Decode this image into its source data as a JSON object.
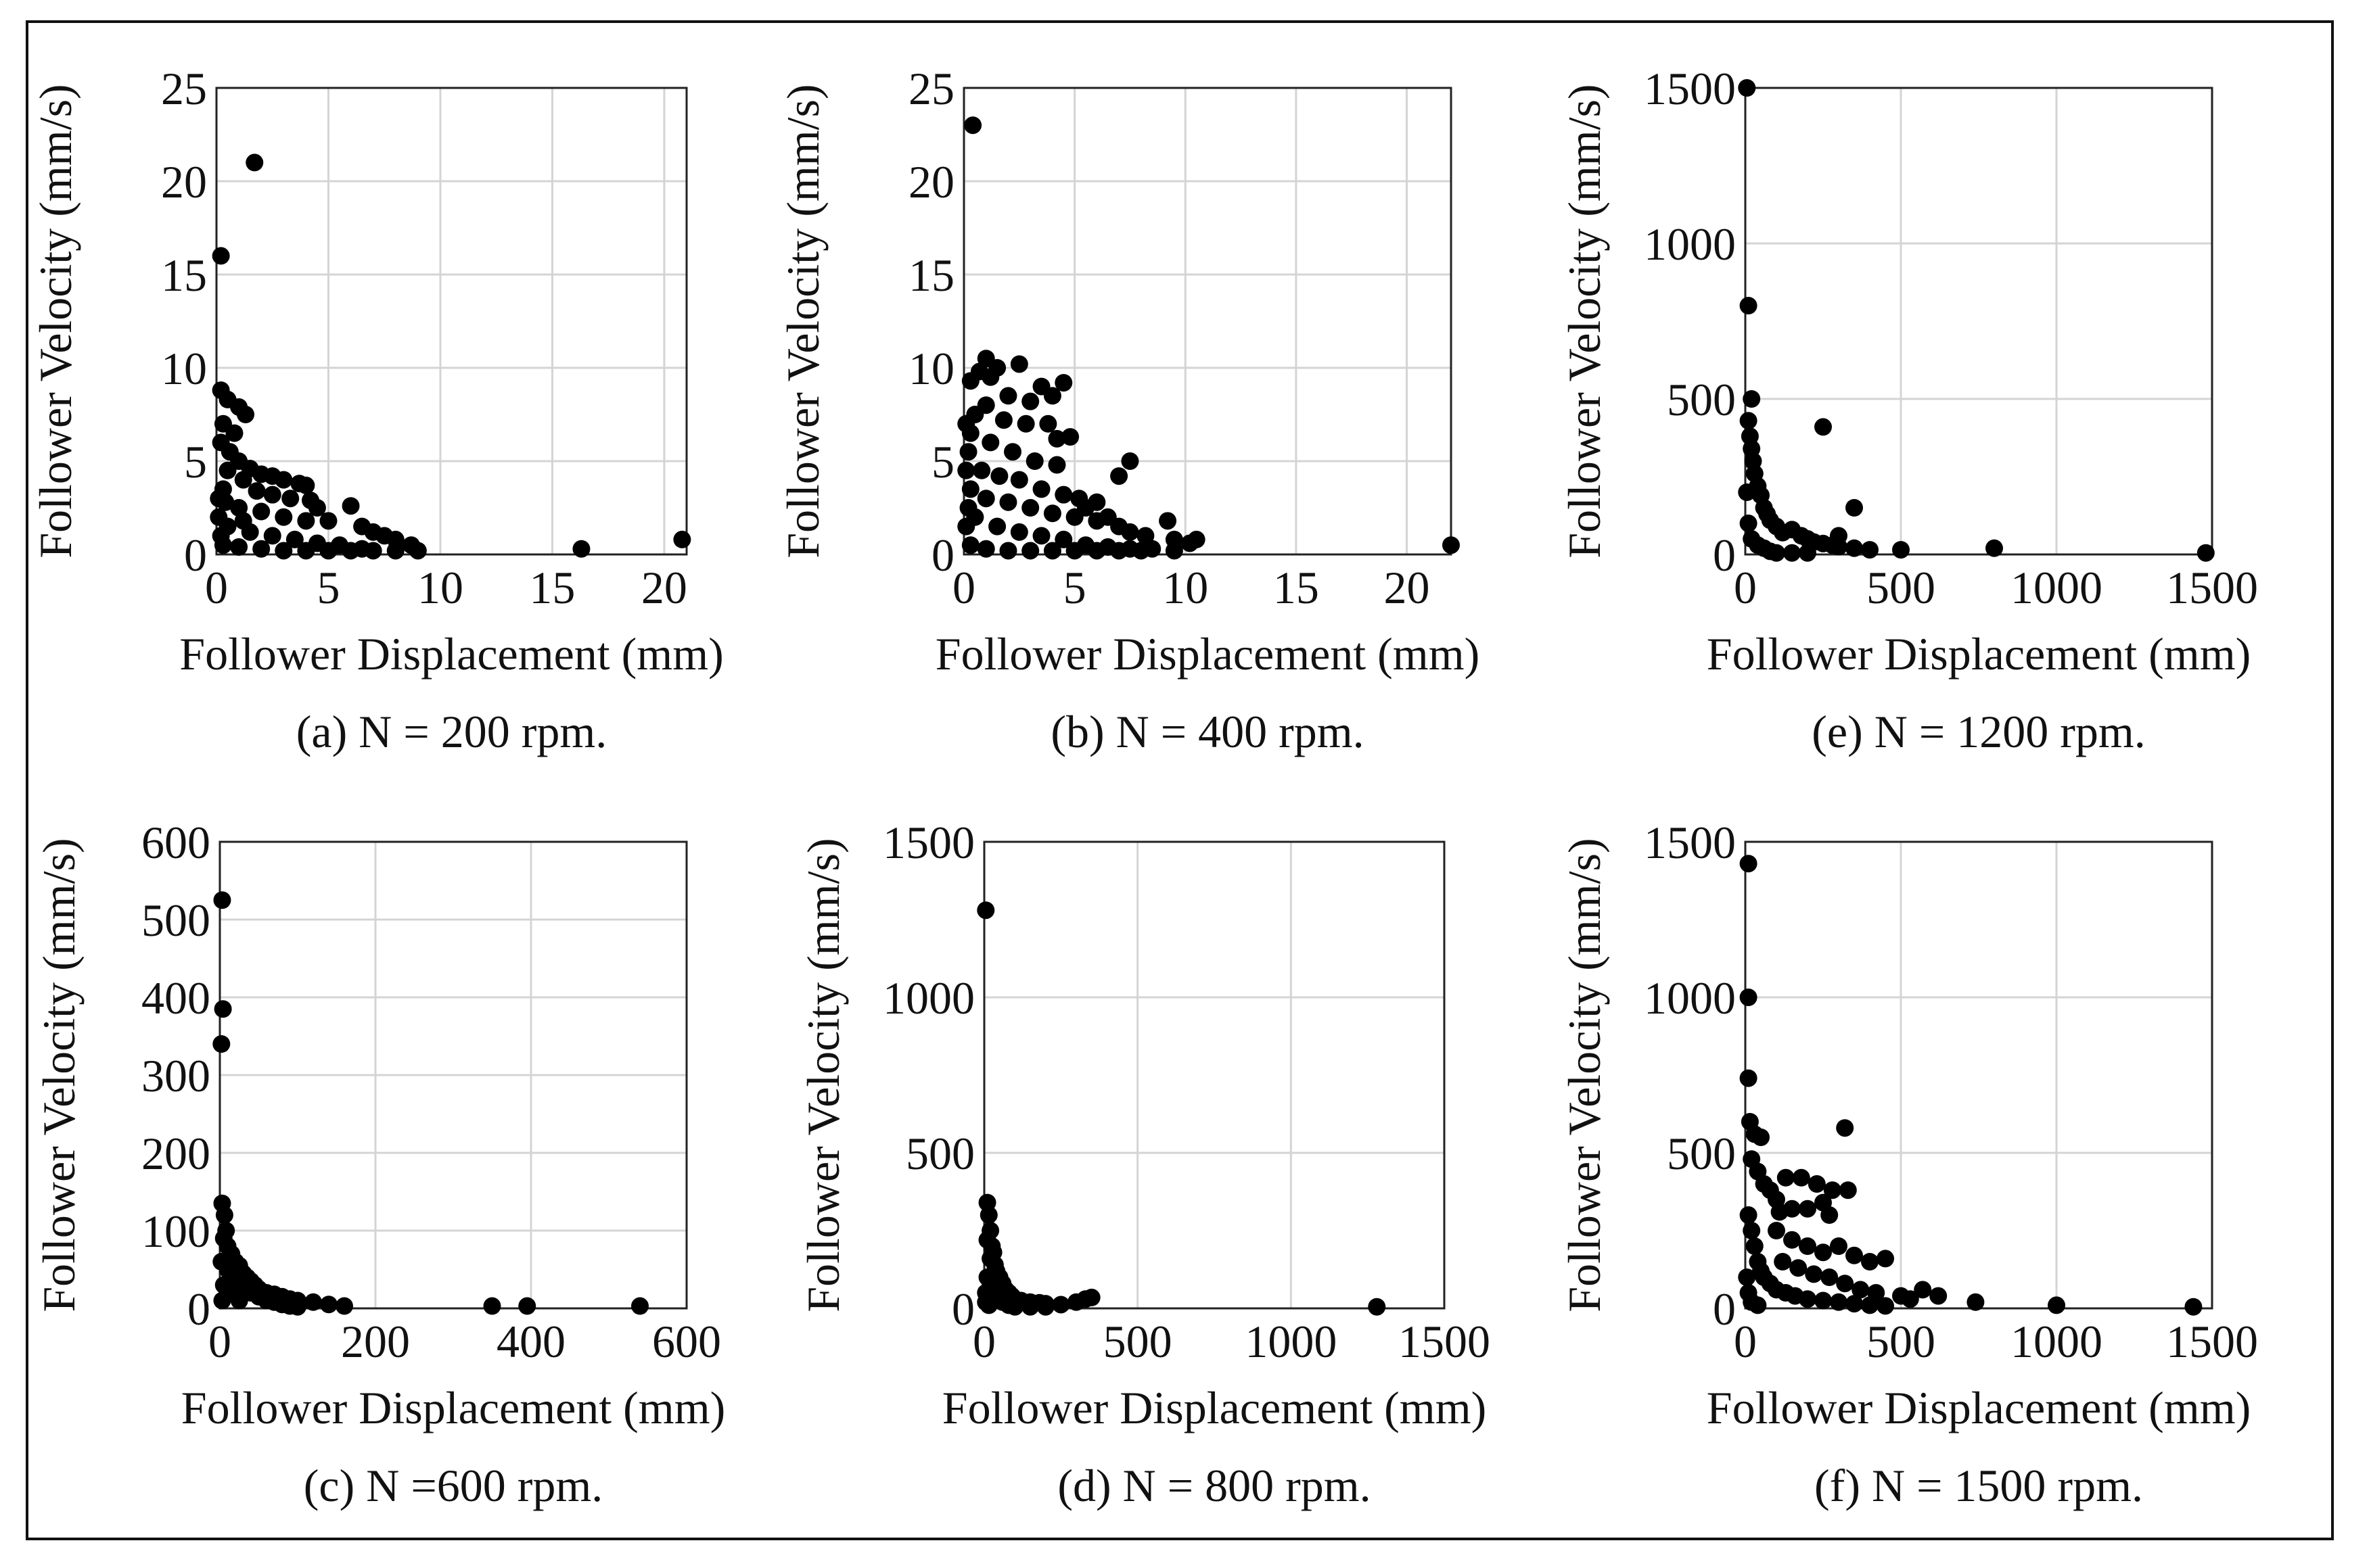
{
  "chart_data": [
    {
      "type": "scatter",
      "id": "a",
      "caption": "(a) N = 200 rpm.",
      "xlabel": "Follower Displacement (mm)",
      "ylabel": "Follower Velocity (mm/s)",
      "xlim": [
        0,
        21
      ],
      "ylim": [
        0,
        25
      ],
      "xticks": [
        0,
        5,
        10,
        15,
        20
      ],
      "yticks": [
        0,
        5,
        10,
        15,
        20,
        25
      ],
      "points": [
        [
          0.2,
          16
        ],
        [
          1.7,
          21
        ],
        [
          0.2,
          8.8
        ],
        [
          0.5,
          8.3
        ],
        [
          1.0,
          7.9
        ],
        [
          1.3,
          7.5
        ],
        [
          0.3,
          7
        ],
        [
          0.8,
          6.5
        ],
        [
          0.2,
          6
        ],
        [
          0.6,
          5.5
        ],
        [
          1.0,
          5
        ],
        [
          1.5,
          4.6
        ],
        [
          2.0,
          4.3
        ],
        [
          2.5,
          4.2
        ],
        [
          3,
          4
        ],
        [
          3.7,
          3.8
        ],
        [
          4.0,
          3.7
        ],
        [
          0.5,
          4.5
        ],
        [
          1.2,
          4
        ],
        [
          0.3,
          3.5
        ],
        [
          1.8,
          3.4
        ],
        [
          2.5,
          3.2
        ],
        [
          3.3,
          3
        ],
        [
          4.2,
          2.9
        ],
        [
          4.5,
          2.5
        ],
        [
          6,
          2.6
        ],
        [
          1,
          2.5
        ],
        [
          2,
          2.3
        ],
        [
          3,
          2
        ],
        [
          4,
          1.8
        ],
        [
          5,
          1.8
        ],
        [
          6.5,
          1.5
        ],
        [
          7,
          1.2
        ],
        [
          7.5,
          1
        ],
        [
          8,
          0.8
        ],
        [
          8.7,
          0.5
        ],
        [
          0.5,
          1.5
        ],
        [
          1.5,
          1.2
        ],
        [
          2.5,
          1
        ],
        [
          3.5,
          0.8
        ],
        [
          4.5,
          0.6
        ],
        [
          5.5,
          0.5
        ],
        [
          6.5,
          0.3
        ],
        [
          0.3,
          0.5
        ],
        [
          1,
          0.4
        ],
        [
          2,
          0.3
        ],
        [
          3,
          0.2
        ],
        [
          4,
          0.2
        ],
        [
          5,
          0.2
        ],
        [
          6,
          0.2
        ],
        [
          7,
          0.2
        ],
        [
          8,
          0.2
        ],
        [
          9,
          0.2
        ],
        [
          16.3,
          0.3
        ],
        [
          20.8,
          0.8
        ],
        [
          0.1,
          2
        ],
        [
          0.2,
          1
        ],
        [
          0.1,
          3
        ],
        [
          0.4,
          2.8
        ],
        [
          1.2,
          1.8
        ]
      ]
    },
    {
      "type": "scatter",
      "id": "b",
      "caption": "(b) N = 400 rpm.",
      "xlabel": "Follower Displacement (mm)",
      "ylabel": "Follower Velocity (mm/s)",
      "xlim": [
        0,
        22
      ],
      "ylim": [
        0,
        25
      ],
      "xticks": [
        0,
        5,
        10,
        15,
        20
      ],
      "yticks": [
        0,
        5,
        10,
        15,
        20,
        25
      ],
      "points": [
        [
          0.4,
          23
        ],
        [
          1,
          10.5
        ],
        [
          1.5,
          10
        ],
        [
          0.7,
          9.8
        ],
        [
          1.2,
          9.5
        ],
        [
          2.5,
          10.2
        ],
        [
          4.5,
          9.2
        ],
        [
          3.5,
          9
        ],
        [
          0.3,
          9.3
        ],
        [
          2,
          8.5
        ],
        [
          3,
          8.2
        ],
        [
          4,
          8.5
        ],
        [
          1,
          8
        ],
        [
          0.5,
          7.5
        ],
        [
          1.8,
          7.2
        ],
        [
          2.8,
          7
        ],
        [
          3.8,
          7
        ],
        [
          4.2,
          6.2
        ],
        [
          4.8,
          6.3
        ],
        [
          0.3,
          6.5
        ],
        [
          1.2,
          6
        ],
        [
          2.2,
          5.5
        ],
        [
          3.2,
          5
        ],
        [
          4.2,
          4.8
        ],
        [
          7,
          4.2
        ],
        [
          7.5,
          5
        ],
        [
          0.2,
          5.5
        ],
        [
          0.8,
          4.5
        ],
        [
          1.6,
          4.2
        ],
        [
          2.5,
          4
        ],
        [
          3.5,
          3.5
        ],
        [
          4.5,
          3.2
        ],
        [
          5.2,
          3
        ],
        [
          6,
          2.8
        ],
        [
          5.5,
          2.5
        ],
        [
          0.3,
          3.5
        ],
        [
          1,
          3
        ],
        [
          2,
          2.8
        ],
        [
          3,
          2.5
        ],
        [
          4,
          2.2
        ],
        [
          5,
          2
        ],
        [
          6,
          1.8
        ],
        [
          6.5,
          2
        ],
        [
          7,
          1.5
        ],
        [
          7.5,
          1.2
        ],
        [
          8.2,
          1
        ],
        [
          9.2,
          1.8
        ],
        [
          9.5,
          0.8
        ],
        [
          10.2,
          0.6
        ],
        [
          10.5,
          0.8
        ],
        [
          0.5,
          2
        ],
        [
          1.5,
          1.5
        ],
        [
          2.5,
          1.2
        ],
        [
          3.5,
          1
        ],
        [
          4.5,
          0.8
        ],
        [
          5.5,
          0.5
        ],
        [
          6.5,
          0.4
        ],
        [
          7.5,
          0.3
        ],
        [
          8.5,
          0.3
        ],
        [
          9.5,
          0.2
        ],
        [
          0.3,
          0.5
        ],
        [
          1,
          0.3
        ],
        [
          2,
          0.2
        ],
        [
          3,
          0.2
        ],
        [
          4,
          0.2
        ],
        [
          5,
          0.2
        ],
        [
          6,
          0.2
        ],
        [
          7,
          0.2
        ],
        [
          8,
          0.2
        ],
        [
          22,
          0.5
        ],
        [
          0.1,
          1.5
        ],
        [
          0.2,
          2.5
        ],
        [
          0.1,
          4.5
        ],
        [
          0.1,
          7
        ]
      ]
    },
    {
      "type": "scatter",
      "id": "e",
      "caption": "(e) N = 1200 rpm.",
      "xlabel": "Follower Displacement (mm)",
      "ylabel": "Follower Velocity (mm/s)",
      "xlim": [
        0,
        1500
      ],
      "ylim": [
        0,
        1500
      ],
      "xticks": [
        0,
        500,
        1000,
        1500
      ],
      "yticks": [
        0,
        500,
        1000,
        1500
      ],
      "points": [
        [
          5,
          1500
        ],
        [
          10,
          800
        ],
        [
          20,
          500
        ],
        [
          10,
          430
        ],
        [
          15,
          380
        ],
        [
          20,
          340
        ],
        [
          25,
          300
        ],
        [
          30,
          260
        ],
        [
          40,
          220
        ],
        [
          50,
          190
        ],
        [
          60,
          150
        ],
        [
          70,
          130
        ],
        [
          80,
          110
        ],
        [
          100,
          90
        ],
        [
          120,
          70
        ],
        [
          150,
          80
        ],
        [
          180,
          60
        ],
        [
          200,
          50
        ],
        [
          220,
          40
        ],
        [
          250,
          35
        ],
        [
          280,
          30
        ],
        [
          300,
          25
        ],
        [
          350,
          20
        ],
        [
          400,
          15
        ],
        [
          250,
          410
        ],
        [
          350,
          150
        ],
        [
          300,
          60
        ],
        [
          500,
          15
        ],
        [
          800,
          20
        ],
        [
          1480,
          5
        ],
        [
          10,
          100
        ],
        [
          20,
          50
        ],
        [
          40,
          30
        ],
        [
          60,
          20
        ],
        [
          80,
          10
        ],
        [
          100,
          5
        ],
        [
          150,
          5
        ],
        [
          200,
          5
        ],
        [
          5,
          200
        ]
      ]
    },
    {
      "type": "scatter",
      "id": "c",
      "caption": "(c) N =600 rpm.",
      "xlabel": "Follower Displacement (mm)",
      "ylabel": "Follower Velocity (mm/s)",
      "xlim": [
        0,
        600
      ],
      "ylim": [
        0,
        600
      ],
      "xticks": [
        0,
        200,
        400,
        600
      ],
      "yticks": [
        0,
        100,
        200,
        300,
        400,
        500,
        600
      ],
      "points": [
        [
          3,
          525
        ],
        [
          4,
          385
        ],
        [
          2,
          340
        ],
        [
          3,
          135
        ],
        [
          6,
          120
        ],
        [
          8,
          100
        ],
        [
          5,
          90
        ],
        [
          10,
          80
        ],
        [
          15,
          70
        ],
        [
          20,
          60
        ],
        [
          25,
          55
        ],
        [
          30,
          45
        ],
        [
          35,
          40
        ],
        [
          40,
          35
        ],
        [
          45,
          30
        ],
        [
          50,
          25
        ],
        [
          60,
          20
        ],
        [
          70,
          18
        ],
        [
          80,
          15
        ],
        [
          90,
          12
        ],
        [
          100,
          10
        ],
        [
          120,
          8
        ],
        [
          140,
          5
        ],
        [
          160,
          3
        ],
        [
          10,
          50
        ],
        [
          20,
          40
        ],
        [
          30,
          30
        ],
        [
          40,
          20
        ],
        [
          50,
          15
        ],
        [
          60,
          10
        ],
        [
          70,
          8
        ],
        [
          80,
          5
        ],
        [
          90,
          3
        ],
        [
          100,
          2
        ],
        [
          350,
          3
        ],
        [
          395,
          3
        ],
        [
          540,
          3
        ],
        [
          2,
          60
        ],
        [
          5,
          30
        ],
        [
          3,
          10
        ],
        [
          15,
          20
        ],
        [
          25,
          10
        ]
      ]
    },
    {
      "type": "scatter",
      "id": "d",
      "caption": "(d) N = 800 rpm.",
      "xlabel": "Follower Displacement (mm)",
      "ylabel": "Follower Velocity (mm/s)",
      "xlim": [
        0,
        1500
      ],
      "ylim": [
        0,
        1500
      ],
      "xticks": [
        0,
        500,
        1000,
        1500
      ],
      "yticks": [
        0,
        500,
        1000,
        1500
      ],
      "points": [
        [
          5,
          1280
        ],
        [
          10,
          340
        ],
        [
          15,
          300
        ],
        [
          20,
          250
        ],
        [
          10,
          220
        ],
        [
          25,
          200
        ],
        [
          30,
          180
        ],
        [
          20,
          160
        ],
        [
          35,
          140
        ],
        [
          40,
          120
        ],
        [
          50,
          100
        ],
        [
          60,
          80
        ],
        [
          70,
          60
        ],
        [
          80,
          50
        ],
        [
          90,
          40
        ],
        [
          100,
          30
        ],
        [
          120,
          25
        ],
        [
          150,
          20
        ],
        [
          180,
          18
        ],
        [
          200,
          15
        ],
        [
          250,
          12
        ],
        [
          300,
          20
        ],
        [
          330,
          30
        ],
        [
          350,
          35
        ],
        [
          10,
          100
        ],
        [
          20,
          80
        ],
        [
          30,
          60
        ],
        [
          40,
          40
        ],
        [
          50,
          30
        ],
        [
          60,
          20
        ],
        [
          80,
          10
        ],
        [
          100,
          5
        ],
        [
          150,
          5
        ],
        [
          200,
          5
        ],
        [
          1280,
          5
        ],
        [
          5,
          50
        ],
        [
          5,
          20
        ],
        [
          15,
          10
        ]
      ]
    },
    {
      "type": "scatter",
      "id": "f",
      "caption": "(f) N = 1500 rpm.",
      "xlabel": "Follower Displacement (mm)",
      "ylabel": "Follower Velocity (mm/s)",
      "xlim": [
        0,
        1500
      ],
      "ylim": [
        0,
        1500
      ],
      "xticks": [
        0,
        500,
        1000,
        1500
      ],
      "yticks": [
        0,
        500,
        1000,
        1500
      ],
      "points": [
        [
          10,
          1430
        ],
        [
          10,
          1000
        ],
        [
          10,
          740
        ],
        [
          15,
          600
        ],
        [
          30,
          560
        ],
        [
          50,
          550
        ],
        [
          20,
          480
        ],
        [
          40,
          440
        ],
        [
          60,
          400
        ],
        [
          80,
          380
        ],
        [
          100,
          350
        ],
        [
          130,
          420
        ],
        [
          180,
          420
        ],
        [
          230,
          400
        ],
        [
          280,
          380
        ],
        [
          320,
          580
        ],
        [
          330,
          380
        ],
        [
          110,
          310
        ],
        [
          150,
          320
        ],
        [
          200,
          320
        ],
        [
          250,
          340
        ],
        [
          270,
          300
        ],
        [
          300,
          200
        ],
        [
          250,
          180
        ],
        [
          350,
          170
        ],
        [
          400,
          150
        ],
        [
          450,
          160
        ],
        [
          100,
          250
        ],
        [
          150,
          220
        ],
        [
          200,
          200
        ],
        [
          120,
          150
        ],
        [
          170,
          130
        ],
        [
          220,
          110
        ],
        [
          270,
          100
        ],
        [
          320,
          80
        ],
        [
          370,
          60
        ],
        [
          420,
          50
        ],
        [
          500,
          40
        ],
        [
          530,
          30
        ],
        [
          570,
          60
        ],
        [
          620,
          40
        ],
        [
          740,
          20
        ],
        [
          1000,
          10
        ],
        [
          1440,
          5
        ],
        [
          10,
          300
        ],
        [
          20,
          250
        ],
        [
          30,
          200
        ],
        [
          40,
          150
        ],
        [
          50,
          120
        ],
        [
          60,
          100
        ],
        [
          80,
          80
        ],
        [
          100,
          60
        ],
        [
          130,
          50
        ],
        [
          160,
          40
        ],
        [
          200,
          30
        ],
        [
          250,
          25
        ],
        [
          300,
          20
        ],
        [
          350,
          15
        ],
        [
          400,
          10
        ],
        [
          450,
          8
        ],
        [
          5,
          100
        ],
        [
          10,
          50
        ],
        [
          20,
          20
        ],
        [
          40,
          10
        ]
      ]
    }
  ]
}
